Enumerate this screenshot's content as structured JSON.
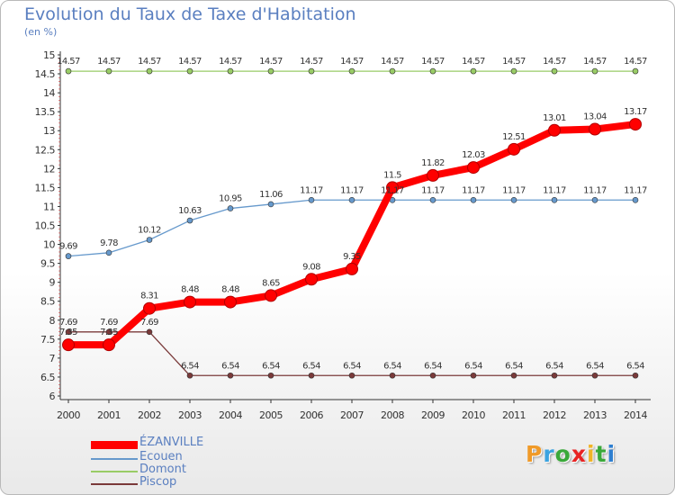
{
  "header": {
    "title": "Evolution du Taux de Taxe d'Habitation",
    "subtitle": "(en %)"
  },
  "logo": {
    "letters": [
      "P",
      "r",
      "o",
      "x",
      "i",
      "t",
      "i"
    ],
    "colors": [
      "#f09a28",
      "#3ba3e0",
      "#3aa83a",
      "#e82323",
      "#f0b428",
      "#3aa83a",
      "#2f7fd0"
    ]
  },
  "chart_data": {
    "type": "line",
    "x": [
      "2000",
      "2001",
      "2002",
      "2003",
      "2004",
      "2005",
      "2006",
      "2007",
      "2008",
      "2009",
      "2010",
      "2011",
      "2012",
      "2013",
      "2014"
    ],
    "ylim": [
      6,
      15
    ],
    "yticks": [
      "6",
      "6.5",
      "7",
      "7.5",
      "8",
      "8.5",
      "9",
      "9.5",
      "10",
      "10.5",
      "11",
      "11.5",
      "12",
      "12.5",
      "13",
      "13.5",
      "14",
      "14.5",
      "15"
    ],
    "grid": false,
    "legend_position": "bottom-left",
    "series": [
      {
        "name": "ÉZANVILLE",
        "color": "#ff0000",
        "values": [
          7.35,
          7.35,
          8.31,
          8.48,
          8.48,
          8.65,
          9.08,
          9.35,
          11.5,
          11.82,
          12.03,
          12.51,
          13.01,
          13.04,
          13.17
        ],
        "labels": [
          "7.35",
          "7.35",
          "8.31",
          "8.48",
          "8.48",
          "8.65",
          "9.08",
          "9.35",
          "11.5",
          "11.82",
          "12.03",
          "12.51",
          "13.01",
          "13.04",
          "13.17"
        ]
      },
      {
        "name": "Ecouen",
        "color": "#6699cc",
        "values": [
          9.69,
          9.78,
          10.12,
          10.63,
          10.95,
          11.06,
          11.17,
          11.17,
          11.17,
          11.17,
          11.17,
          11.17,
          11.17,
          11.17,
          11.17
        ],
        "labels": [
          "9.69",
          "9.78",
          "10.12",
          "10.63",
          "10.95",
          "11.06",
          "11.17",
          "11.17",
          "11.17",
          "11.17",
          "11.17",
          "11.17",
          "11.17",
          "11.17",
          "11.17"
        ]
      },
      {
        "name": "Domont",
        "color": "#99cc66",
        "values": [
          14.57,
          14.57,
          14.57,
          14.57,
          14.57,
          14.57,
          14.57,
          14.57,
          14.57,
          14.57,
          14.57,
          14.57,
          14.57,
          14.57,
          14.57
        ],
        "labels": [
          "14.57",
          "14.57",
          "14.57",
          "14.57",
          "14.57",
          "14.57",
          "14.57",
          "14.57",
          "14.57",
          "14.57",
          "14.57",
          "14.57",
          "14.57",
          "14.57",
          "14.57"
        ]
      },
      {
        "name": "Piscop",
        "color": "#7a3a3a",
        "values": [
          7.69,
          7.69,
          7.69,
          6.54,
          6.54,
          6.54,
          6.54,
          6.54,
          6.54,
          6.54,
          6.54,
          6.54,
          6.54,
          6.54,
          6.54
        ],
        "labels": [
          "7.69",
          "7.69",
          "7.69",
          "6.54",
          "6.54",
          "6.54",
          "6.54",
          "6.54",
          "6.54",
          "6.54",
          "6.54",
          "6.54",
          "6.54",
          "6.54",
          "6.54"
        ]
      }
    ]
  }
}
